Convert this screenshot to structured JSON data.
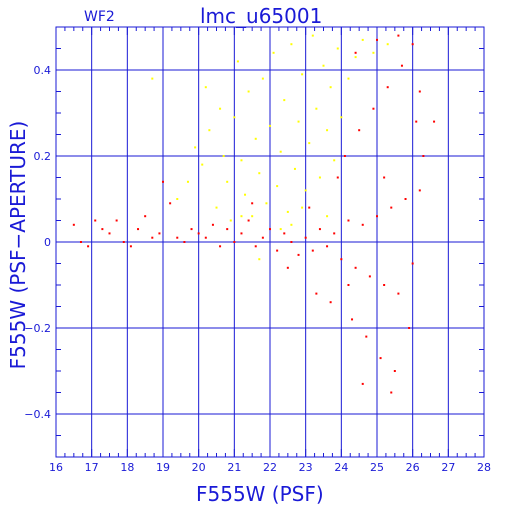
{
  "chart_data": {
    "type": "scatter",
    "title": "lmc_u65001",
    "subtitle": "WF2",
    "xlabel": "F555W (PSF)",
    "ylabel": "F555W (PSF−APERTURE)",
    "xlim": [
      16,
      28
    ],
    "ylim": [
      -0.5,
      0.5
    ],
    "x_ticks": [
      16,
      17,
      18,
      19,
      20,
      21,
      22,
      23,
      24,
      25,
      26,
      27,
      28
    ],
    "y_ticks": [
      -0.4,
      -0.2,
      0,
      0.2,
      0.4
    ],
    "y_tick_labels": [
      "−0.4",
      "−0.2",
      "0",
      "0.2",
      "0.4"
    ],
    "grid": true,
    "colors": {
      "axes": "#1a1ad6",
      "rejected": "#ffff00",
      "accepted": "#ff0000"
    },
    "series": [
      {
        "color": "#ffff00",
        "points": [
          [
            19.9,
            0.22
          ],
          [
            20.1,
            0.18
          ],
          [
            20.3,
            0.26
          ],
          [
            20.5,
            0.08
          ],
          [
            20.6,
            0.31
          ],
          [
            20.8,
            0.14
          ],
          [
            20.9,
            0.05
          ],
          [
            21.0,
            0.29
          ],
          [
            21.1,
            0.42
          ],
          [
            21.2,
            0.19
          ],
          [
            21.3,
            0.11
          ],
          [
            21.4,
            0.35
          ],
          [
            21.5,
            0.06
          ],
          [
            21.6,
            0.24
          ],
          [
            21.7,
            0.16
          ],
          [
            21.8,
            0.38
          ],
          [
            21.9,
            0.09
          ],
          [
            22.0,
            0.27
          ],
          [
            22.1,
            0.44
          ],
          [
            22.2,
            0.13
          ],
          [
            22.3,
            0.21
          ],
          [
            22.4,
            0.33
          ],
          [
            22.5,
            0.07
          ],
          [
            22.6,
            0.46
          ],
          [
            22.7,
            0.17
          ],
          [
            22.8,
            0.28
          ],
          [
            22.9,
            0.39
          ],
          [
            23.0,
            0.12
          ],
          [
            23.1,
            0.23
          ],
          [
            23.2,
            0.48
          ],
          [
            23.3,
            0.31
          ],
          [
            23.4,
            0.15
          ],
          [
            23.5,
            0.41
          ],
          [
            23.6,
            0.26
          ],
          [
            23.7,
            0.36
          ],
          [
            23.8,
            0.19
          ],
          [
            23.9,
            0.45
          ],
          [
            24.0,
            0.29
          ],
          [
            24.2,
            0.38
          ],
          [
            24.4,
            0.43
          ],
          [
            24.6,
            0.47
          ],
          [
            24.9,
            0.44
          ],
          [
            25.3,
            0.46
          ],
          [
            19.4,
            0.1
          ],
          [
            19.7,
            0.14
          ],
          [
            20.2,
            0.36
          ],
          [
            21.2,
            0.06
          ],
          [
            22.3,
            0.03
          ],
          [
            18.7,
            0.38
          ],
          [
            21.7,
            -0.04
          ],
          [
            22.6,
            0.04
          ],
          [
            20.7,
            0.2
          ],
          [
            23.6,
            0.06
          ],
          [
            22.9,
            0.08
          ]
        ]
      },
      {
        "color": "#ff0000",
        "points": [
          [
            16.5,
            0.04
          ],
          [
            16.7,
            0.0
          ],
          [
            16.9,
            -0.01
          ],
          [
            17.1,
            0.05
          ],
          [
            17.3,
            0.03
          ],
          [
            17.5,
            0.02
          ],
          [
            17.7,
            0.05
          ],
          [
            17.9,
            0.0
          ],
          [
            18.1,
            -0.01
          ],
          [
            18.3,
            0.03
          ],
          [
            18.5,
            0.06
          ],
          [
            18.7,
            0.01
          ],
          [
            18.9,
            0.02
          ],
          [
            19.0,
            0.14
          ],
          [
            19.2,
            0.09
          ],
          [
            19.4,
            0.01
          ],
          [
            19.6,
            0.0
          ],
          [
            19.8,
            0.03
          ],
          [
            20.0,
            0.02
          ],
          [
            20.2,
            0.01
          ],
          [
            20.4,
            0.04
          ],
          [
            20.6,
            -0.01
          ],
          [
            20.8,
            0.03
          ],
          [
            21.0,
            0.0
          ],
          [
            21.2,
            0.02
          ],
          [
            21.4,
            0.05
          ],
          [
            21.6,
            -0.01
          ],
          [
            21.8,
            0.01
          ],
          [
            22.0,
            0.03
          ],
          [
            22.2,
            -0.02
          ],
          [
            22.4,
            0.02
          ],
          [
            22.6,
            0.0
          ],
          [
            22.8,
            -0.03
          ],
          [
            23.0,
            0.01
          ],
          [
            23.2,
            -0.02
          ],
          [
            23.4,
            0.03
          ],
          [
            23.6,
            -0.01
          ],
          [
            23.8,
            0.02
          ],
          [
            24.0,
            -0.04
          ],
          [
            24.2,
            0.05
          ],
          [
            24.4,
            -0.06
          ],
          [
            24.6,
            0.04
          ],
          [
            24.8,
            -0.08
          ],
          [
            25.0,
            0.06
          ],
          [
            25.2,
            -0.1
          ],
          [
            25.4,
            0.08
          ],
          [
            25.6,
            -0.12
          ],
          [
            25.8,
            0.1
          ],
          [
            26.0,
            -0.05
          ],
          [
            26.2,
            0.12
          ],
          [
            24.1,
            0.2
          ],
          [
            24.3,
            -0.18
          ],
          [
            24.5,
            0.26
          ],
          [
            24.7,
            -0.22
          ],
          [
            24.9,
            0.31
          ],
          [
            25.1,
            -0.27
          ],
          [
            25.3,
            0.36
          ],
          [
            25.5,
            -0.3
          ],
          [
            25.7,
            0.41
          ],
          [
            25.9,
            -0.2
          ],
          [
            26.1,
            0.28
          ],
          [
            26.3,
            0.2
          ],
          [
            24.4,
            0.44
          ],
          [
            25.0,
            0.47
          ],
          [
            25.6,
            0.48
          ],
          [
            26.0,
            0.46
          ],
          [
            24.6,
            -0.33
          ],
          [
            25.4,
            -0.35
          ],
          [
            26.6,
            0.28
          ],
          [
            26.2,
            0.35
          ],
          [
            25.2,
            0.15
          ],
          [
            24.2,
            -0.1
          ],
          [
            23.3,
            -0.12
          ],
          [
            23.7,
            -0.14
          ],
          [
            23.1,
            0.08
          ],
          [
            23.9,
            0.15
          ],
          [
            22.5,
            -0.06
          ],
          [
            21.5,
            0.09
          ]
        ]
      }
    ]
  }
}
